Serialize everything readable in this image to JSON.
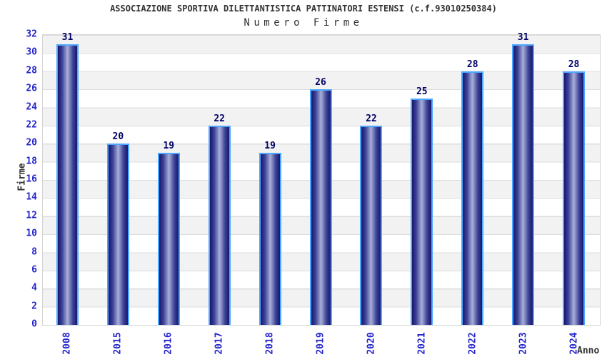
{
  "header": {
    "title": "ASSOCIAZIONE SPORTIVA DILETTANTISTICA PATTINATORI ESTENSI (c.f.93010250384)",
    "subtitle": "Numero Firme"
  },
  "chart_data": {
    "type": "bar",
    "title": "ASSOCIAZIONE SPORTIVA DILETTANTISTICA PATTINATORI ESTENSI (c.f.93010250384)",
    "subtitle": "Numero Firme",
    "xlabel": "Anno",
    "ylabel": "Firme",
    "categories": [
      "2008",
      "2015",
      "2016",
      "2017",
      "2018",
      "2019",
      "2020",
      "2021",
      "2022",
      "2023",
      "2024"
    ],
    "values": [
      31,
      20,
      19,
      22,
      19,
      26,
      22,
      25,
      28,
      31,
      28
    ],
    "ylim": [
      0,
      32
    ],
    "ytick_step": 2,
    "grid": true,
    "legend": false,
    "bands_alternating": true
  },
  "colors": {
    "heading_text": "#333333",
    "tick_label": "#2626cc",
    "value_label": "#000066",
    "bar_border": "#4da6ff",
    "bar_edge": "#17176e",
    "bar_mid": "#3c4296",
    "bar_highlight": "#a9afd9",
    "band_fill": "#f2f2f2",
    "gridline": "#dcdcdc",
    "plot_border": "#d4d4d4",
    "background": "#ffffff"
  }
}
